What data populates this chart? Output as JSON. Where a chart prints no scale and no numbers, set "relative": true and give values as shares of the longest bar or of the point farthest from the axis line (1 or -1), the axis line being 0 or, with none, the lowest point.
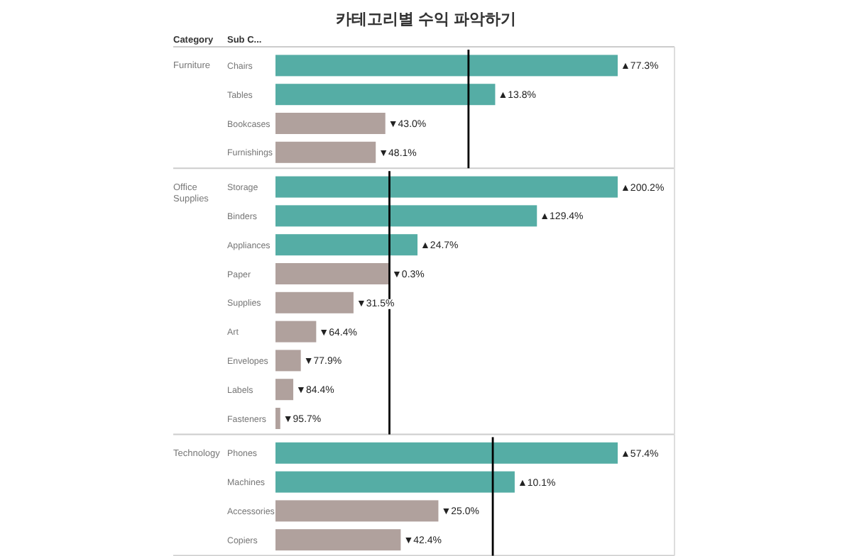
{
  "chart_data": [
    {
      "type": "bar",
      "orientation": "horizontal",
      "relative": true,
      "title": "카테고리별 수익 파악하기",
      "ylabel": "Furniture",
      "categories": [
        "Chairs",
        "Tables",
        "Bookcases",
        "Furnishings"
      ],
      "values": [
        1,
        0.642,
        0.321,
        0.293
      ],
      "colors": [
        "#55ada5",
        "#55ada5",
        "#b0a19d",
        "#b0a19d"
      ],
      "annotations": [
        "Category",
        "Sub C...",
        {
          "text": "▲77.3%",
          "x": 1,
          "y": "Chairs"
        },
        {
          "text": "▲13.8%",
          "x": 0.642,
          "y": "Tables"
        },
        {
          "text": "▼43.0%",
          "x": 0.321,
          "y": "Bookcases"
        },
        {
          "text": "▼48.1%",
          "x": 0.293,
          "y": "Furnishings"
        }
      ],
      "ref_lines": [
        {
          "axis": "x",
          "value": 0.564,
          "color": "#000000"
        }
      ]
    },
    {
      "type": "bar",
      "orientation": "horizontal",
      "relative": true,
      "ylabel": "Office Supplies",
      "categories": [
        "Storage",
        "Binders",
        "Appliances",
        "Paper",
        "Supplies",
        "Art",
        "Envelopes",
        "Labels",
        "Fasteners"
      ],
      "values": [
        1,
        0.764,
        0.415,
        0.332,
        0.228,
        0.119,
        0.074,
        0.052,
        0.014
      ],
      "colors": [
        "#55ada5",
        "#55ada5",
        "#55ada5",
        "#b0a19d",
        "#b0a19d",
        "#b0a19d",
        "#b0a19d",
        "#b0a19d",
        "#b0a19d"
      ],
      "annotations": [
        {
          "text": "▲200.2%",
          "x": 1,
          "y": "Storage"
        },
        {
          "text": "▲129.4%",
          "x": 0.764,
          "y": "Binders"
        },
        {
          "text": "▲24.7%",
          "x": 0.415,
          "y": "Appliances"
        },
        {
          "text": "▼0.3%",
          "x": 0.332,
          "y": "Paper"
        },
        {
          "text": "▼31.5%",
          "x": 0.228,
          "y": "Supplies"
        },
        {
          "text": "▼64.4%",
          "x": 0.119,
          "y": "Art"
        },
        {
          "text": "▼77.9%",
          "x": 0.074,
          "y": "Envelopes"
        },
        {
          "text": "▼84.4%",
          "x": 0.052,
          "y": "Labels"
        },
        {
          "text": "▼95.7%",
          "x": 0.014,
          "y": "Fasteners"
        }
      ],
      "ref_lines": [
        {
          "axis": "x",
          "value": 0.333,
          "color": "#000000"
        }
      ]
    },
    {
      "type": "bar",
      "orientation": "horizontal",
      "relative": true,
      "ylabel": "Technology",
      "categories": [
        "Phones",
        "Machines",
        "Accessories",
        "Copiers"
      ],
      "values": [
        1,
        0.699,
        0.476,
        0.366
      ],
      "colors": [
        "#55ada5",
        "#55ada5",
        "#b0a19d",
        "#b0a19d"
      ],
      "annotations": [
        {
          "text": "▲57.4%",
          "x": 1,
          "y": "Phones"
        },
        {
          "text": "▲10.1%",
          "x": 0.699,
          "y": "Machines"
        },
        {
          "text": "▼25.0%",
          "x": 0.476,
          "y": "Accessories"
        },
        {
          "text": "▼42.4%",
          "x": 0.366,
          "y": "Copiers"
        }
      ],
      "ref_lines": [
        {
          "axis": "x",
          "value": 0.635,
          "color": "#000000"
        }
      ]
    }
  ]
}
